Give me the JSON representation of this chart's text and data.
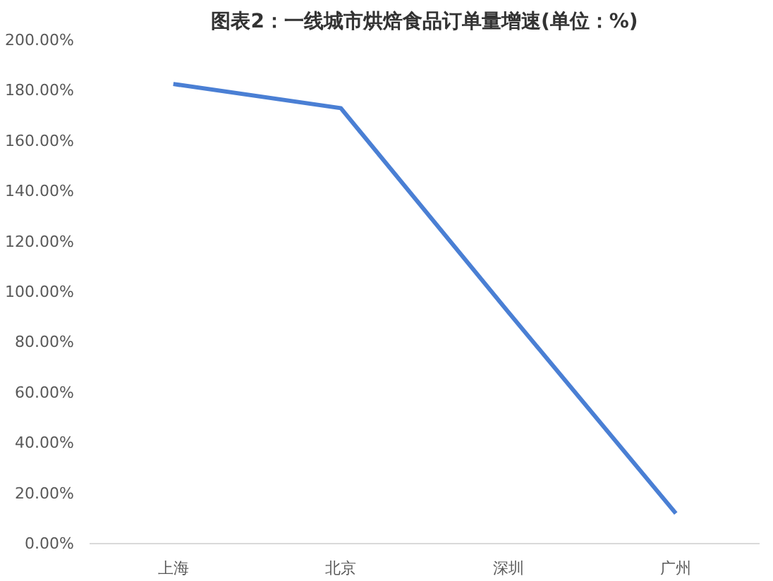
{
  "chart_data": {
    "type": "line",
    "title": "图表2：一线城市烘焙食品订单量增速(单位：%)",
    "categories": [
      "上海",
      "北京",
      "深圳",
      "广州"
    ],
    "series": [
      {
        "color": "#4a7fd4",
        "values": [
          182.6,
          173,
          92,
          12
        ]
      }
    ],
    "ylim": [
      0,
      200
    ],
    "yticks": [
      {
        "value": 0,
        "label": "0.00%"
      },
      {
        "value": 20,
        "label": "20.00%"
      },
      {
        "value": 40,
        "label": "40.00%"
      },
      {
        "value": 60,
        "label": "60.00%"
      },
      {
        "value": 80,
        "label": "80.00%"
      },
      {
        "value": 100,
        "label": "100.00%"
      },
      {
        "value": 120,
        "label": "120.00%"
      },
      {
        "value": 140,
        "label": "140.00%"
      },
      {
        "value": 160,
        "label": "160.00%"
      },
      {
        "value": 180,
        "label": "180.00%"
      },
      {
        "value": 200,
        "label": "200.00%"
      }
    ],
    "grid": false,
    "marker": "none",
    "line_style": "solid"
  }
}
